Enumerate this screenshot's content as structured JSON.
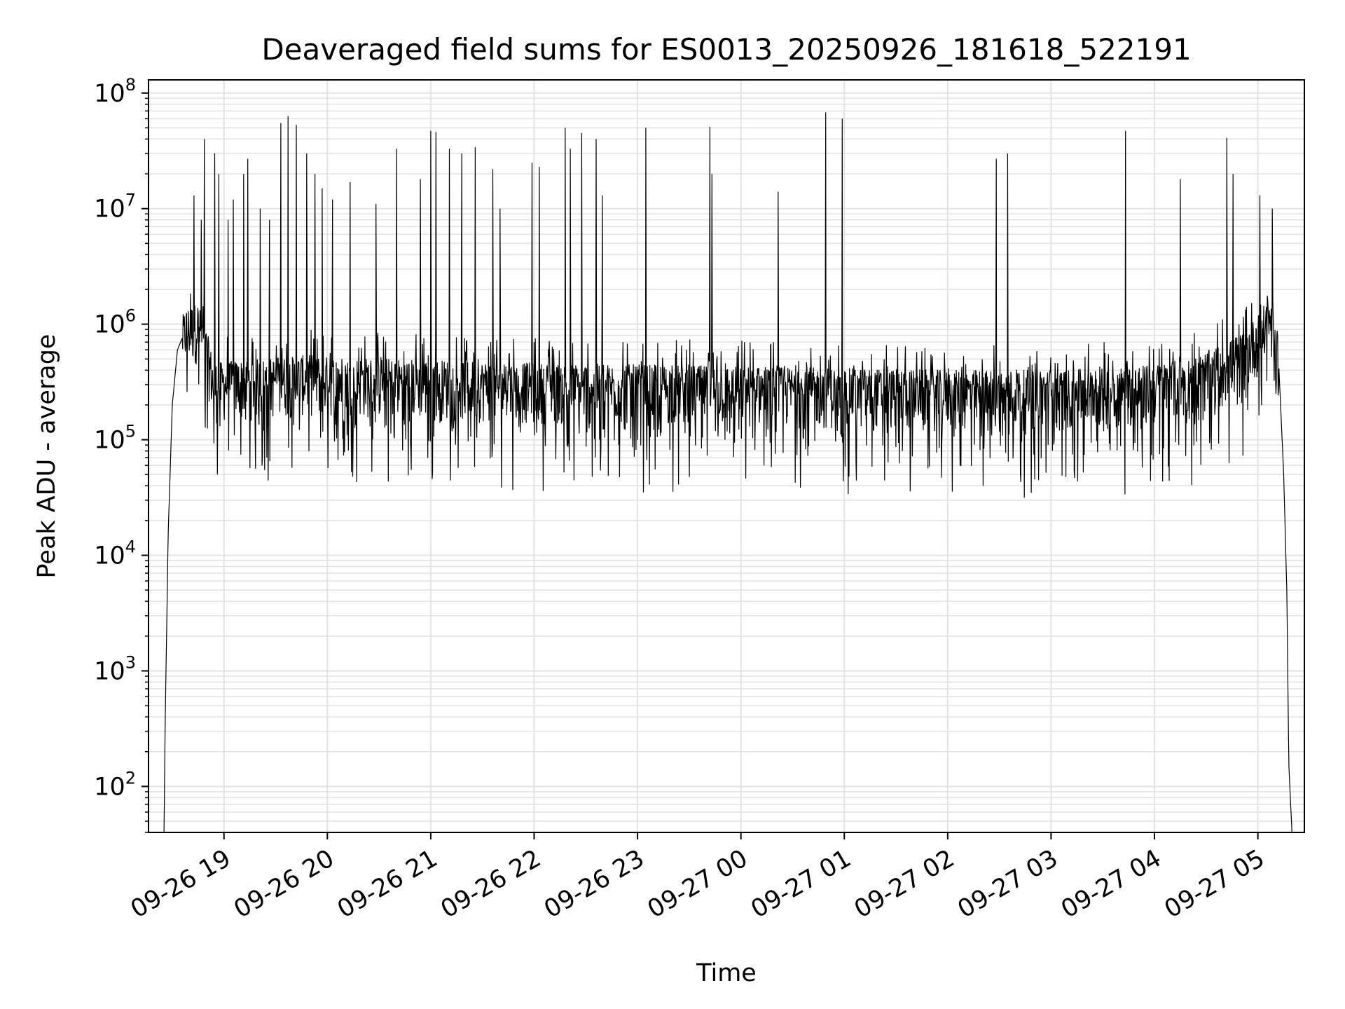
{
  "chart_data": {
    "type": "line",
    "title": "Deaveraged field sums for ES0013_20250926_181618_522191",
    "xlabel": "Time",
    "ylabel": "Peak ADU - average",
    "yscale": "log",
    "ylim": [
      40,
      130000000
    ],
    "xlim_hours": [
      18.27,
      29.45
    ],
    "x_ticks": [
      {
        "label": "09-26 19",
        "hour": 19
      },
      {
        "label": "09-26 20",
        "hour": 20
      },
      {
        "label": "09-26 21",
        "hour": 21
      },
      {
        "label": "09-26 22",
        "hour": 22
      },
      {
        "label": "09-26 23",
        "hour": 23
      },
      {
        "label": "09-27 00",
        "hour": 24
      },
      {
        "label": "09-27 01",
        "hour": 25
      },
      {
        "label": "09-27 02",
        "hour": 26
      },
      {
        "label": "09-27 03",
        "hour": 27
      },
      {
        "label": "09-27 04",
        "hour": 28
      },
      {
        "label": "09-27 05",
        "hour": 29
      }
    ],
    "y_ticks": [
      {
        "base": "10",
        "exp": "2",
        "value": 100
      },
      {
        "base": "10",
        "exp": "3",
        "value": 1000
      },
      {
        "base": "10",
        "exp": "4",
        "value": 10000
      },
      {
        "base": "10",
        "exp": "5",
        "value": 100000
      },
      {
        "base": "10",
        "exp": "6",
        "value": 1000000
      },
      {
        "base": "10",
        "exp": "7",
        "value": 10000000
      },
      {
        "base": "10",
        "exp": "8",
        "value": 100000000
      }
    ],
    "grid": true,
    "line_color": "#000000",
    "grid_color": "#e3e3e3",
    "series": [
      {
        "name": "deaveraged field sum",
        "baseline": [
          [
            18.42,
            40
          ],
          [
            18.43,
            300
          ],
          [
            18.46,
            15000
          ],
          [
            18.5,
            200000
          ],
          [
            18.55,
            600000
          ],
          [
            18.63,
            900000
          ],
          [
            18.75,
            1000000
          ],
          [
            18.85,
            500000
          ],
          [
            18.9,
            300000
          ],
          [
            19.2,
            320000
          ],
          [
            19.5,
            330000
          ],
          [
            19.8,
            350000
          ],
          [
            20.0,
            340000
          ],
          [
            20.5,
            330000
          ],
          [
            21.0,
            320000
          ],
          [
            22.0,
            300000
          ],
          [
            23.0,
            290000
          ],
          [
            24.0,
            280000
          ],
          [
            25.0,
            270000
          ],
          [
            26.0,
            260000
          ],
          [
            27.0,
            260000
          ],
          [
            27.5,
            270000
          ],
          [
            28.0,
            290000
          ],
          [
            28.4,
            340000
          ],
          [
            28.7,
            450000
          ],
          [
            28.9,
            600000
          ],
          [
            29.05,
            900000
          ],
          [
            29.1,
            1100000
          ],
          [
            29.15,
            1000000
          ],
          [
            29.2,
            500000
          ],
          [
            29.25,
            50000
          ],
          [
            29.28,
            5000
          ],
          [
            29.3,
            150
          ],
          [
            29.33,
            40
          ]
        ],
        "spikes": [
          [
            18.71,
            13000000
          ],
          [
            18.78,
            8000000
          ],
          [
            18.81,
            40000000
          ],
          [
            18.91,
            30000000
          ],
          [
            18.95,
            20000000
          ],
          [
            19.04,
            8000000
          ],
          [
            19.09,
            12000000
          ],
          [
            19.19,
            20000000
          ],
          [
            19.23,
            27000000
          ],
          [
            19.35,
            10000000
          ],
          [
            19.44,
            8000000
          ],
          [
            19.55,
            55000000
          ],
          [
            19.62,
            63000000
          ],
          [
            19.7,
            53000000
          ],
          [
            19.8,
            30000000
          ],
          [
            19.88,
            20000000
          ],
          [
            19.95,
            15000000
          ],
          [
            20.05,
            12000000
          ],
          [
            20.22,
            17000000
          ],
          [
            20.47,
            11000000
          ],
          [
            20.67,
            33000000
          ],
          [
            20.9,
            18000000
          ],
          [
            21.0,
            47000000
          ],
          [
            21.05,
            46000000
          ],
          [
            21.18,
            33000000
          ],
          [
            21.3,
            30000000
          ],
          [
            21.43,
            34000000
          ],
          [
            21.6,
            22000000
          ],
          [
            21.67,
            10000000
          ],
          [
            21.98,
            25000000
          ],
          [
            22.05,
            23000000
          ],
          [
            22.3,
            50000000
          ],
          [
            22.35,
            33000000
          ],
          [
            22.46,
            45000000
          ],
          [
            22.6,
            40000000
          ],
          [
            22.66,
            13000000
          ],
          [
            23.08,
            50000000
          ],
          [
            23.7,
            51000000
          ],
          [
            23.72,
            20000000
          ],
          [
            24.36,
            14000000
          ],
          [
            24.82,
            68000000
          ],
          [
            24.98,
            60000000
          ],
          [
            26.47,
            27000000
          ],
          [
            26.58,
            30000000
          ],
          [
            27.72,
            47000000
          ],
          [
            28.25,
            18000000
          ],
          [
            28.7,
            41000000
          ],
          [
            28.76,
            20000000
          ],
          [
            29.02,
            13000000
          ],
          [
            29.14,
            10000000
          ]
        ],
        "noise_floor_approx": 300000
      }
    ]
  }
}
